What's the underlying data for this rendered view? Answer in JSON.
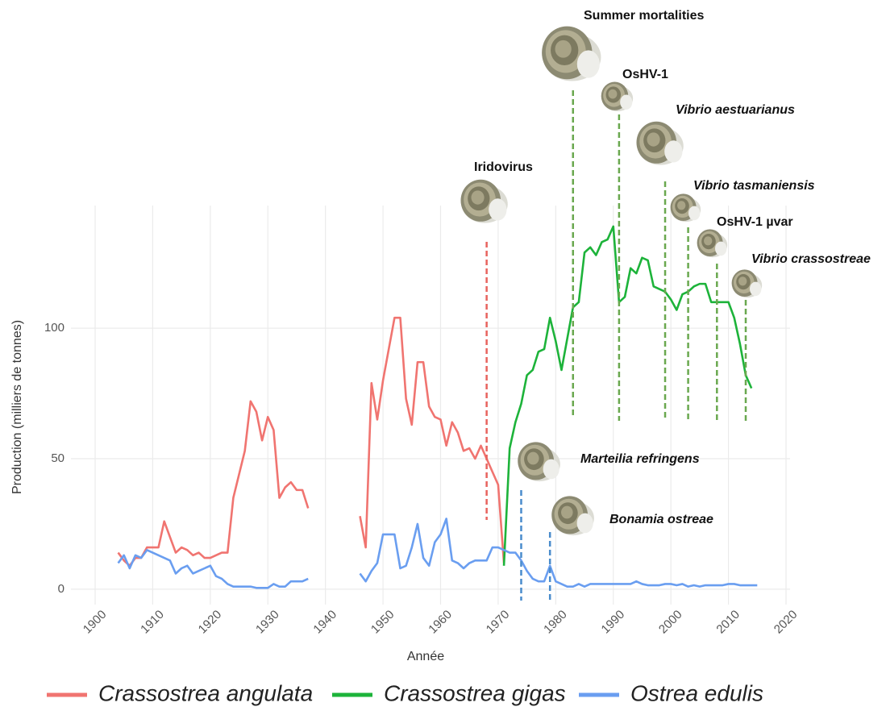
{
  "chart_data": {
    "type": "line",
    "x_label": "Année",
    "y_label": "Production (milliers de tonnes)",
    "x": [
      1904,
      1905,
      1906,
      1907,
      1908,
      1909,
      1910,
      1911,
      1912,
      1913,
      1914,
      1915,
      1916,
      1917,
      1918,
      1919,
      1920,
      1921,
      1922,
      1923,
      1924,
      1925,
      1926,
      1927,
      1928,
      1929,
      1930,
      1931,
      1932,
      1933,
      1934,
      1935,
      1936,
      1937,
      1938,
      1939,
      1940,
      1941,
      1942,
      1943,
      1944,
      1945,
      1946,
      1947,
      1948,
      1949,
      1950,
      1951,
      1952,
      1953,
      1954,
      1955,
      1956,
      1957,
      1958,
      1959,
      1960,
      1961,
      1962,
      1963,
      1964,
      1965,
      1966,
      1967,
      1968,
      1969,
      1970,
      1971,
      1972,
      1973,
      1974,
      1975,
      1976,
      1977,
      1978,
      1979,
      1980,
      1981,
      1982,
      1983,
      1984,
      1985,
      1986,
      1987,
      1988,
      1989,
      1990,
      1991,
      1992,
      1993,
      1994,
      1995,
      1996,
      1997,
      1998,
      1999,
      2000,
      2001,
      2002,
      2003,
      2004,
      2005,
      2006,
      2007,
      2008,
      2009,
      2010,
      2011,
      2012,
      2013,
      2014,
      2015
    ],
    "series": [
      {
        "name": "Crassostrea angulata",
        "color": "#f07470",
        "values": [
          14,
          11,
          9,
          12,
          12,
          16,
          16,
          16,
          26,
          20,
          14,
          16,
          15,
          13,
          14,
          12,
          12,
          13,
          14,
          14,
          35,
          44,
          53,
          72,
          68,
          57,
          66,
          61,
          35,
          39,
          41,
          38,
          38,
          31,
          null,
          null,
          null,
          null,
          null,
          null,
          null,
          null,
          28,
          16,
          79,
          65,
          80,
          92,
          104,
          104,
          73,
          63,
          87,
          87,
          70,
          66,
          65,
          55,
          64,
          60,
          53,
          54,
          50,
          55,
          50,
          45,
          40,
          10,
          null,
          null,
          null,
          null,
          null,
          null,
          null,
          null,
          null,
          null,
          null,
          null,
          null,
          null,
          null,
          null,
          null,
          null,
          null,
          null,
          null,
          null,
          null,
          null,
          null,
          null,
          null,
          null,
          null,
          null,
          null,
          null,
          null,
          null,
          null,
          null,
          null,
          null,
          null,
          null,
          null,
          null,
          null,
          null
        ]
      },
      {
        "name": "Crassostrea gigas",
        "color": "#1db33a",
        "values": [
          null,
          null,
          null,
          null,
          null,
          null,
          null,
          null,
          null,
          null,
          null,
          null,
          null,
          null,
          null,
          null,
          null,
          null,
          null,
          null,
          null,
          null,
          null,
          null,
          null,
          null,
          null,
          null,
          null,
          null,
          null,
          null,
          null,
          null,
          null,
          null,
          null,
          null,
          null,
          null,
          null,
          null,
          null,
          null,
          null,
          null,
          null,
          null,
          null,
          null,
          null,
          null,
          null,
          null,
          null,
          null,
          null,
          null,
          null,
          null,
          null,
          null,
          null,
          null,
          null,
          null,
          null,
          9,
          54,
          64,
          71,
          82,
          84,
          91,
          92,
          104,
          95,
          84,
          96,
          108,
          110,
          129,
          131,
          128,
          133,
          134,
          139,
          110,
          112,
          123,
          121,
          127,
          126,
          116,
          115,
          114,
          111,
          107,
          113,
          114,
          116,
          117,
          117,
          110,
          110,
          110,
          110,
          104,
          94,
          82,
          77,
          null
        ]
      },
      {
        "name": "Ostrea edulis",
        "color": "#6a9ef0",
        "values": [
          10,
          13,
          8,
          13,
          12,
          15,
          14,
          13,
          12,
          11,
          6,
          8,
          9,
          6,
          7,
          8,
          9,
          5,
          4,
          2,
          1,
          1,
          1,
          1,
          0.5,
          0.5,
          0.5,
          2,
          1,
          1,
          3,
          3,
          3,
          4,
          null,
          null,
          null,
          null,
          null,
          null,
          null,
          null,
          6,
          3,
          7,
          10,
          21,
          21,
          21,
          8,
          9,
          16,
          25,
          12,
          9,
          18,
          21,
          27,
          11,
          10,
          8,
          10,
          11,
          11,
          11,
          16,
          16,
          15,
          14,
          14,
          11,
          7,
          4,
          3,
          3,
          9,
          3,
          2,
          1,
          1,
          2,
          1,
          2,
          2,
          2,
          2,
          2,
          2,
          2,
          2,
          3,
          2,
          1.5,
          1.5,
          1.5,
          2,
          2,
          1.5,
          2,
          1,
          1.5,
          1,
          1.5,
          1.5,
          1.5,
          1.5,
          2,
          2,
          1.5,
          1.5,
          1.5,
          1.5
        ]
      }
    ],
    "xlim": [
      1895.8,
      2020.7
    ],
    "ylim": [
      -5.9,
      147
    ],
    "xticks": [
      1900,
      1910,
      1920,
      1930,
      1940,
      1950,
      1960,
      1970,
      1980,
      1990,
      2000,
      2010,
      2020
    ],
    "yticks": [
      0,
      50,
      100
    ],
    "grid": true,
    "legend": "bottom",
    "annotations": [
      {
        "label": "Iridovirus",
        "x": 1968,
        "color": "#e8635e",
        "italic": false
      },
      {
        "label": "Summer mortalities",
        "x": 1983,
        "color": "#6aa84f",
        "italic": false
      },
      {
        "label": "OsHV-1",
        "x": 1991,
        "color": "#6aa84f",
        "italic": false
      },
      {
        "label": "Vibrio aestuarianus",
        "x": 1999,
        "color": "#6aa84f",
        "italic": true
      },
      {
        "label": "Vibrio tasmaniensis",
        "x": 2003,
        "color": "#6aa84f",
        "italic": true
      },
      {
        "label": "OsHV-1 µvar",
        "x": 2008,
        "color": "#6aa84f",
        "italic": false
      },
      {
        "label": "Vibrio crassostreae",
        "x": 2013,
        "color": "#6aa84f",
        "italic": true
      },
      {
        "label": "Marteilia refringens",
        "x": 1974,
        "color": "#4a8ccc",
        "italic": true
      },
      {
        "label": "Bonamia ostreae",
        "x": 1979,
        "color": "#4a8ccc",
        "italic": true
      }
    ]
  }
}
